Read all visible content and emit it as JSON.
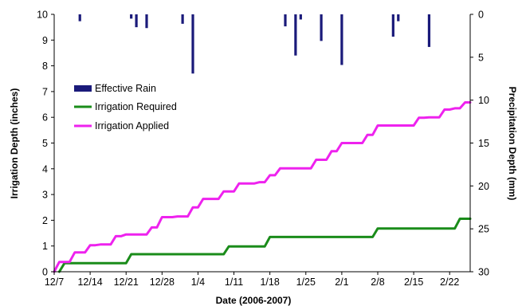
{
  "chart_data": {
    "type": "line",
    "xlabel": "Date (2006-2007)",
    "ylabel": "Irrigation Depth (inches)",
    "y2label": "Precipitation Depth (mm)",
    "x_ticks": [
      "12/7",
      "12/14",
      "12/21",
      "12/28",
      "1/4",
      "1/11",
      "1/18",
      "1/25",
      "2/1",
      "2/8",
      "2/15",
      "2/22"
    ],
    "ylim": [
      0,
      10
    ],
    "y_ticks": [
      "0",
      "1",
      "2",
      "3",
      "4",
      "5",
      "6",
      "7",
      "8",
      "9",
      "10"
    ],
    "y2lim": [
      0,
      30
    ],
    "y2_inverted": true,
    "y2_ticks": [
      "0",
      "5",
      "10",
      "15",
      "20",
      "25",
      "30"
    ],
    "grid": false,
    "legend": {
      "position": "upper-left",
      "entries": [
        "Effective Rain",
        "Irrigation Required",
        "Irrigation Applied"
      ]
    },
    "series": [
      {
        "name": "Effective Rain",
        "type": "bar",
        "axis": "y2",
        "color": "#1a1a7a",
        "x": [
          "2006-12-12",
          "2006-12-22",
          "2006-12-23",
          "2006-12-25",
          "2007-01-01",
          "2007-01-03",
          "2007-01-21",
          "2007-01-23",
          "2007-01-24",
          "2007-01-28",
          "2007-02-01",
          "2007-02-11",
          "2007-02-12",
          "2007-02-18"
        ],
        "values": [
          0.8,
          0.5,
          1.5,
          1.6,
          1.1,
          6.9,
          1.4,
          4.8,
          0.6,
          3.1,
          5.9,
          2.6,
          0.8,
          3.8
        ]
      },
      {
        "name": "Irrigation Required",
        "type": "line",
        "axis": "y",
        "color": "#1a8c1a",
        "x": [
          "2006-12-08",
          "2006-12-09",
          "2006-12-21",
          "2006-12-22",
          "2007-01-09",
          "2007-01-10",
          "2007-01-17",
          "2007-01-18",
          "2007-02-07",
          "2007-02-08",
          "2007-02-23",
          "2007-02-24",
          "2007-02-26"
        ],
        "values": [
          0.0,
          0.33,
          0.33,
          0.68,
          0.68,
          0.98,
          0.98,
          1.35,
          1.35,
          1.68,
          1.68,
          2.06,
          2.06
        ]
      },
      {
        "name": "Irrigation Applied",
        "type": "line",
        "axis": "y",
        "color": "#ee22ee",
        "x": [
          "2006-12-07",
          "2006-12-08",
          "2006-12-10",
          "2006-12-11",
          "2006-12-13",
          "2006-12-14",
          "2006-12-15",
          "2006-12-16",
          "2006-12-18",
          "2006-12-19",
          "2006-12-20",
          "2006-12-21",
          "2006-12-25",
          "2006-12-26",
          "2006-12-27",
          "2006-12-28",
          "2006-12-30",
          "2006-12-31",
          "2007-01-02",
          "2007-01-03",
          "2007-01-04",
          "2007-01-05",
          "2007-01-08",
          "2007-01-09",
          "2007-01-11",
          "2007-01-12",
          "2007-01-15",
          "2007-01-16",
          "2007-01-17",
          "2007-01-18",
          "2007-01-19",
          "2007-01-20",
          "2007-01-26",
          "2007-01-27",
          "2007-01-29",
          "2007-01-30",
          "2007-01-31",
          "2007-02-01",
          "2007-02-05",
          "2007-02-06",
          "2007-02-07",
          "2007-02-08",
          "2007-02-15",
          "2007-02-16",
          "2007-02-17",
          "2007-02-18",
          "2007-02-20",
          "2007-02-21",
          "2007-02-22",
          "2007-02-23",
          "2007-02-24",
          "2007-02-25",
          "2007-02-26"
        ],
        "values": [
          0.0,
          0.38,
          0.38,
          0.75,
          0.75,
          1.03,
          1.03,
          1.06,
          1.06,
          1.38,
          1.38,
          1.45,
          1.45,
          1.72,
          1.72,
          2.12,
          2.12,
          2.15,
          2.15,
          2.5,
          2.5,
          2.83,
          2.83,
          3.12,
          3.12,
          3.43,
          3.43,
          3.48,
          3.48,
          3.75,
          3.75,
          4.02,
          4.02,
          4.35,
          4.35,
          4.68,
          4.68,
          5.0,
          5.0,
          5.32,
          5.32,
          5.68,
          5.68,
          5.98,
          5.98,
          6.0,
          6.0,
          6.3,
          6.3,
          6.35,
          6.35,
          6.58,
          6.58
        ]
      }
    ]
  }
}
